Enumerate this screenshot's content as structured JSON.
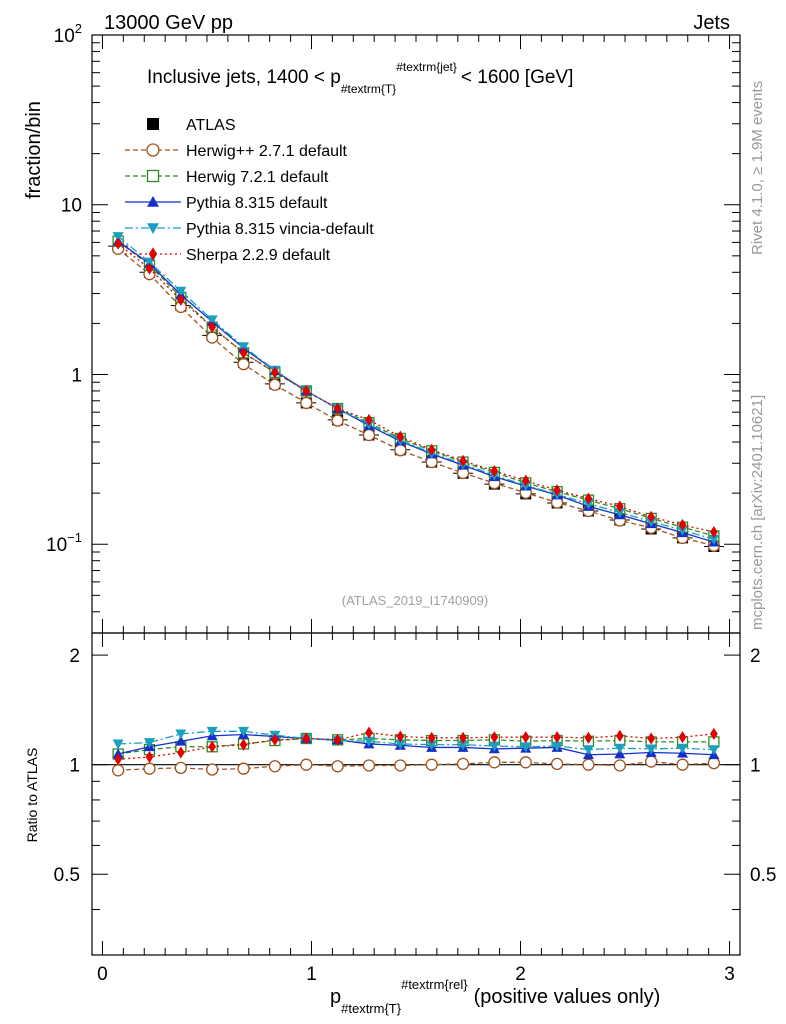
{
  "header": {
    "left": "13000 GeV pp",
    "right": "Jets"
  },
  "side_text": {
    "rivet": "Rivet 4.1.0, ≥ 1.9M events",
    "mcplots": "mcplots.cern.ch [arXiv:2401.10621]"
  },
  "chart_data": {
    "type": "line",
    "title_main": "Inclusive jets, 1400 < p",
    "title_sub": "#textrm{T}",
    "title_sup": "#textrm{jet}",
    "title_tail": "< 1600 [GeV]",
    "analysis_label": "(ATLAS_2019_I1740909)",
    "ylabel_top": "fraction/bin",
    "ylabel_bottom": "Ratio to ATLAS",
    "xlabel_main": "p",
    "xlabel_sub": "#textrm{T}",
    "xlabel_sup": "#textrm{rel}",
    "xlabel_tail": "(positive values only)",
    "xlim": [
      -0.05,
      3.05
    ],
    "ylim_top": [
      0.03,
      100
    ],
    "ylim_ratio": [
      0.3,
      2.3
    ],
    "x_ticks": [
      {
        "v": 0,
        "label": "0"
      },
      {
        "v": 1,
        "label": "1"
      },
      {
        "v": 2,
        "label": "2"
      },
      {
        "v": 3,
        "label": "3"
      }
    ],
    "y_ticks_top": [
      {
        "v": 0.1,
        "base": "10",
        "exp": "−1"
      },
      {
        "v": 1,
        "base": "1",
        "exp": ""
      },
      {
        "v": 10,
        "base": "10",
        "exp": ""
      },
      {
        "v": 100,
        "base": "10",
        "exp": "2"
      }
    ],
    "y_ticks_ratio": [
      {
        "v": 0.5,
        "label": "0.5"
      },
      {
        "v": 1,
        "label": "1"
      },
      {
        "v": 2,
        "label": "2"
      }
    ],
    "x": [
      0.075,
      0.225,
      0.375,
      0.525,
      0.675,
      0.825,
      0.975,
      1.125,
      1.275,
      1.425,
      1.575,
      1.725,
      1.875,
      2.025,
      2.175,
      2.325,
      2.475,
      2.625,
      2.775,
      2.925
    ],
    "data": {
      "name": "ATLAS",
      "values": [
        5.7,
        4.0,
        2.55,
        1.7,
        1.18,
        0.88,
        0.68,
        0.54,
        0.44,
        0.36,
        0.305,
        0.262,
        0.226,
        0.198,
        0.175,
        0.157,
        0.139,
        0.123,
        0.109,
        0.097
      ]
    },
    "series": [
      {
        "name": "Herwig++ 2.7.1 default",
        "color": "#a0521c",
        "marker": "open-circle",
        "dash": "5,3",
        "values": [
          5.5,
          3.9,
          2.5,
          1.65,
          1.15,
          0.87,
          0.68,
          0.535,
          0.44,
          0.358,
          0.305,
          0.263,
          0.229,
          0.201,
          0.176,
          0.157,
          0.138,
          0.125,
          0.109,
          0.098
        ]
      },
      {
        "name": "Herwig 7.2.1 default",
        "color": "#2e8b24",
        "marker": "open-square",
        "dash": "5,3",
        "values": [
          6.1,
          4.4,
          2.85,
          1.9,
          1.34,
          1.03,
          0.8,
          0.63,
          0.52,
          0.42,
          0.355,
          0.305,
          0.265,
          0.23,
          0.204,
          0.182,
          0.162,
          0.142,
          0.126,
          0.112
        ]
      },
      {
        "name": "Pythia 8.315 default",
        "color": "#1430c8",
        "marker": "up-triangle",
        "dash": "",
        "values": [
          6.1,
          4.5,
          2.95,
          2.05,
          1.43,
          1.05,
          0.8,
          0.63,
          0.5,
          0.405,
          0.34,
          0.292,
          0.25,
          0.22,
          0.195,
          0.167,
          0.149,
          0.132,
          0.117,
          0.103
        ]
      },
      {
        "name": "Pythia 8.315 vincia-default",
        "color": "#1a9fc0",
        "marker": "down-triangle",
        "dash": "8,3,2,3",
        "values": [
          6.5,
          4.6,
          3.1,
          2.1,
          1.46,
          1.06,
          0.8,
          0.63,
          0.51,
          0.41,
          0.345,
          0.297,
          0.255,
          0.222,
          0.197,
          0.173,
          0.154,
          0.136,
          0.121,
          0.107
        ]
      },
      {
        "name": "Sherpa 2.2.9 default",
        "color": "#e00000",
        "marker": "diamond",
        "dash": "2,3",
        "values": [
          5.9,
          4.2,
          2.75,
          1.9,
          1.34,
          1.03,
          0.8,
          0.63,
          0.54,
          0.43,
          0.36,
          0.31,
          0.27,
          0.237,
          0.208,
          0.186,
          0.167,
          0.145,
          0.13,
          0.118
        ]
      }
    ],
    "ratio_series": [
      {
        "name": "Herwig++ 2.7.1 default",
        "values": [
          0.965,
          0.975,
          0.98,
          0.97,
          0.975,
          0.99,
          1.0,
          0.99,
          0.995,
          0.995,
          1.0,
          1.005,
          1.015,
          1.015,
          1.005,
          1.0,
          0.995,
          1.02,
          1.0,
          1.01
        ]
      },
      {
        "name": "Herwig 7.2.1 default",
        "values": [
          1.07,
          1.1,
          1.12,
          1.12,
          1.14,
          1.165,
          1.18,
          1.17,
          1.18,
          1.17,
          1.165,
          1.165,
          1.17,
          1.16,
          1.165,
          1.16,
          1.165,
          1.155,
          1.155,
          1.155
        ]
      },
      {
        "name": "Pythia 8.315 default",
        "values": [
          1.07,
          1.12,
          1.16,
          1.2,
          1.21,
          1.195,
          1.18,
          1.17,
          1.14,
          1.13,
          1.115,
          1.115,
          1.105,
          1.11,
          1.115,
          1.065,
          1.07,
          1.08,
          1.075,
          1.065
        ]
      },
      {
        "name": "Pythia 8.315 vincia-default",
        "values": [
          1.14,
          1.15,
          1.215,
          1.235,
          1.235,
          1.205,
          1.18,
          1.165,
          1.16,
          1.14,
          1.135,
          1.135,
          1.125,
          1.12,
          1.125,
          1.1,
          1.11,
          1.105,
          1.11,
          1.1
        ]
      },
      {
        "name": "Sherpa 2.2.9 default",
        "values": [
          1.035,
          1.05,
          1.08,
          1.12,
          1.135,
          1.17,
          1.18,
          1.17,
          1.225,
          1.195,
          1.185,
          1.185,
          1.19,
          1.19,
          1.19,
          1.185,
          1.2,
          1.18,
          1.19,
          1.215
        ]
      }
    ],
    "legend_position": "top-left"
  }
}
